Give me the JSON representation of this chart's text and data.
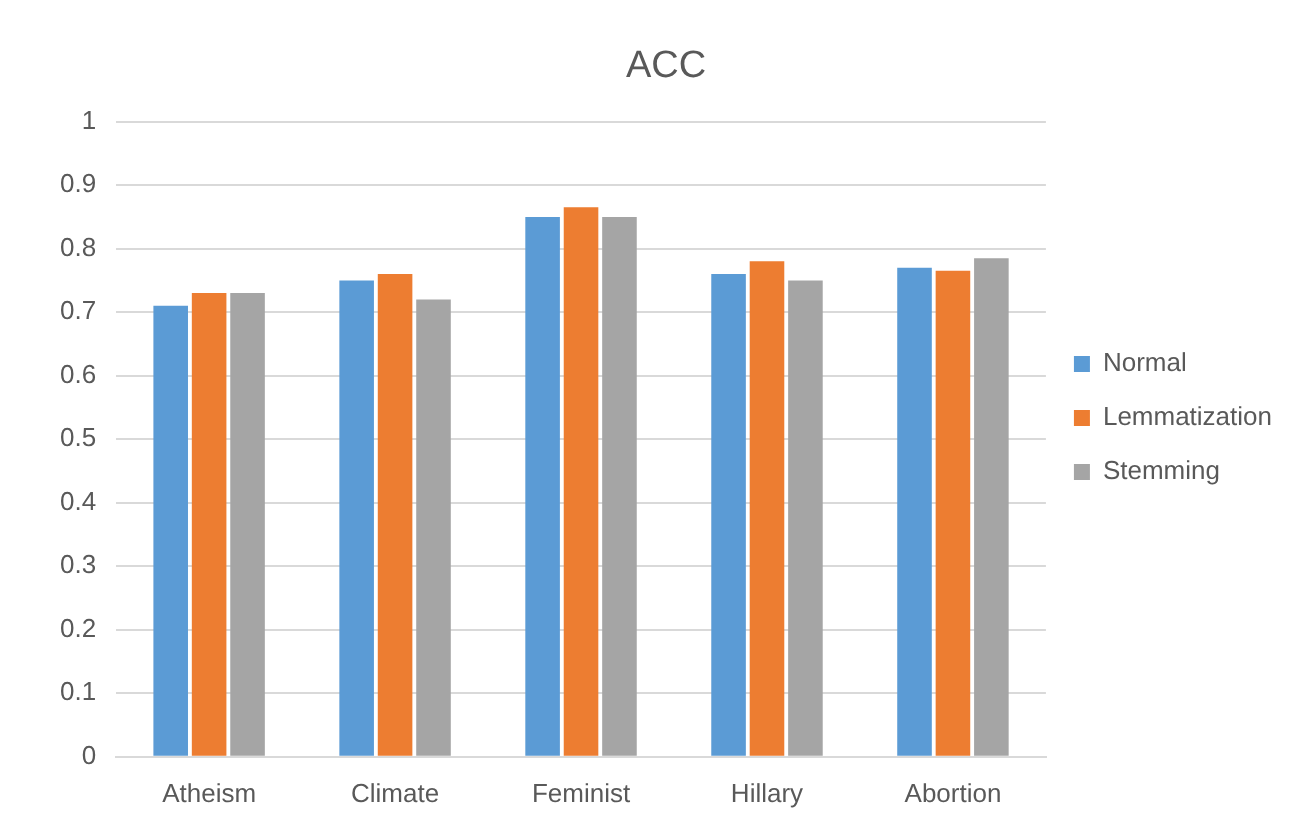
{
  "chart_data": {
    "type": "bar",
    "title": "ACC",
    "categories": [
      "Atheism",
      "Climate",
      "Feminist",
      "Hillary",
      "Abortion"
    ],
    "series": [
      {
        "name": "Normal",
        "color": "#5b9bd5",
        "values": [
          0.71,
          0.75,
          0.85,
          0.76,
          0.77
        ]
      },
      {
        "name": "Lemmatization",
        "color": "#ed7d31",
        "values": [
          0.73,
          0.76,
          0.865,
          0.78,
          0.765
        ]
      },
      {
        "name": "Stemming",
        "color": "#a5a5a5",
        "values": [
          0.73,
          0.72,
          0.85,
          0.75,
          0.785
        ]
      }
    ],
    "ylim": [
      0,
      1
    ],
    "yticks": [
      0,
      0.1,
      0.2,
      0.3,
      0.4,
      0.5,
      0.6,
      0.7,
      0.8,
      0.9,
      1
    ],
    "grid": "y",
    "legend": "right"
  }
}
